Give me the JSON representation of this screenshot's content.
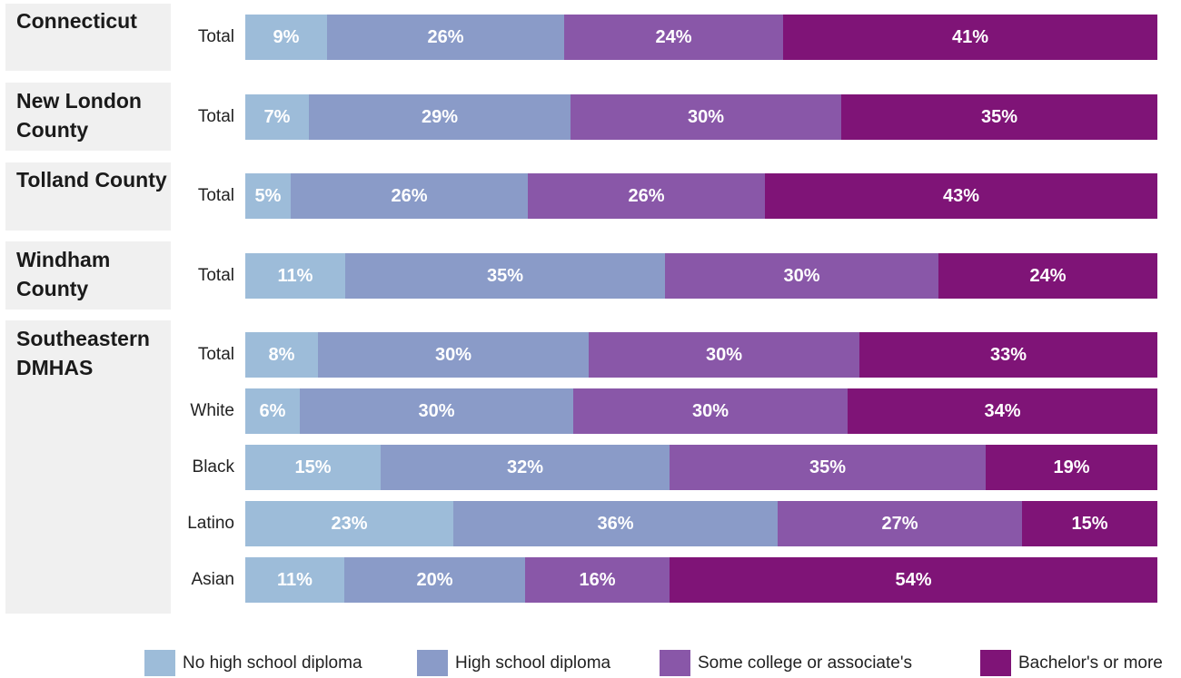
{
  "chart_data": {
    "type": "bar",
    "orientation": "horizontal",
    "stacked": true,
    "percent": true,
    "title": "",
    "xlabel": "",
    "ylabel": "",
    "legend_position": "bottom",
    "grid": false,
    "series": [
      {
        "name": "No high school diploma",
        "color": "#9dbcd9"
      },
      {
        "name": "High school diploma",
        "color": "#8a9bc8"
      },
      {
        "name": "Some college or associate's",
        "color": "#8957a8"
      },
      {
        "name": "Bachelor's or more",
        "color": "#7f1477"
      }
    ],
    "groups": [
      {
        "name": "Connecticut",
        "rows": [
          {
            "label": "Total",
            "values": [
              9,
              26,
              24,
              41
            ]
          }
        ]
      },
      {
        "name": "New London County",
        "rows": [
          {
            "label": "Total",
            "values": [
              7,
              29,
              30,
              35
            ]
          }
        ]
      },
      {
        "name": "Tolland County",
        "rows": [
          {
            "label": "Total",
            "values": [
              5,
              26,
              26,
              43
            ]
          }
        ]
      },
      {
        "name": "Windham County",
        "rows": [
          {
            "label": "Total",
            "values": [
              11,
              35,
              30,
              24
            ]
          }
        ]
      },
      {
        "name": "Southeastern DMHAS",
        "rows": [
          {
            "label": "Total",
            "values": [
              8,
              30,
              30,
              33
            ]
          },
          {
            "label": "White",
            "values": [
              6,
              30,
              30,
              34
            ]
          },
          {
            "label": "Black",
            "values": [
              15,
              32,
              35,
              19
            ]
          },
          {
            "label": "Latino",
            "values": [
              23,
              36,
              27,
              15
            ]
          },
          {
            "label": "Asian",
            "values": [
              11,
              20,
              16,
              54
            ]
          }
        ]
      }
    ]
  }
}
